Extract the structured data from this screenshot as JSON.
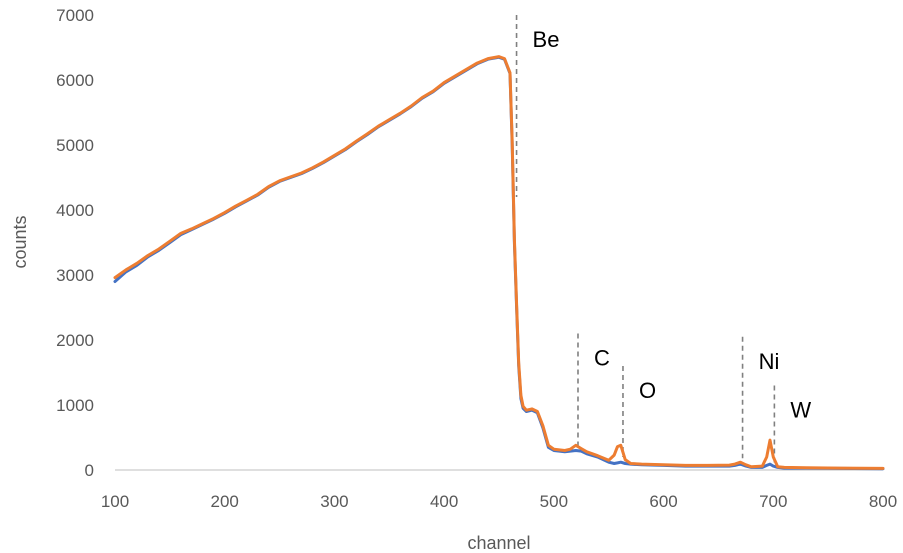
{
  "chart_data": {
    "type": "line",
    "title": "",
    "xlabel": "channel",
    "ylabel": "counts",
    "xlim": [
      100,
      800
    ],
    "ylim": [
      0,
      7000
    ],
    "xticks": [
      100,
      200,
      300,
      400,
      500,
      600,
      700,
      800
    ],
    "yticks": [
      0,
      1000,
      2000,
      3000,
      4000,
      5000,
      6000,
      7000
    ],
    "grid": false,
    "legend": "none",
    "series": [
      {
        "color": "#4472C4",
        "x": [
          100,
          110,
          120,
          130,
          140,
          150,
          160,
          170,
          180,
          190,
          200,
          210,
          220,
          230,
          240,
          250,
          260,
          270,
          280,
          290,
          300,
          310,
          320,
          330,
          340,
          350,
          360,
          370,
          380,
          390,
          400,
          410,
          420,
          430,
          440,
          450,
          455,
          460,
          462,
          464,
          466,
          468,
          470,
          472,
          475,
          480,
          485,
          490,
          495,
          500,
          510,
          515,
          520,
          525,
          530,
          540,
          550,
          555,
          558,
          561,
          565,
          570,
          580,
          600,
          620,
          640,
          660,
          665,
          670,
          675,
          680,
          690,
          694,
          697,
          700,
          704,
          710,
          730,
          760,
          800
        ],
        "y": [
          2900,
          3050,
          3150,
          3280,
          3380,
          3500,
          3620,
          3700,
          3780,
          3860,
          3950,
          4050,
          4140,
          4230,
          4350,
          4440,
          4500,
          4560,
          4640,
          4730,
          4830,
          4930,
          5050,
          5160,
          5280,
          5380,
          5480,
          5590,
          5720,
          5820,
          5950,
          6050,
          6150,
          6250,
          6320,
          6350,
          6320,
          6100,
          5000,
          3500,
          2500,
          1600,
          1100,
          950,
          900,
          920,
          880,
          650,
          350,
          300,
          280,
          290,
          300,
          290,
          250,
          200,
          120,
          100,
          110,
          120,
          100,
          90,
          80,
          70,
          60,
          60,
          60,
          70,
          90,
          60,
          40,
          40,
          70,
          90,
          60,
          40,
          30,
          30,
          25,
          20
        ]
      },
      {
        "color": "#ED7D31",
        "x": [
          100,
          110,
          120,
          130,
          140,
          150,
          160,
          170,
          180,
          190,
          200,
          210,
          220,
          230,
          240,
          250,
          260,
          270,
          280,
          290,
          300,
          310,
          320,
          330,
          340,
          350,
          360,
          370,
          380,
          390,
          400,
          410,
          420,
          430,
          440,
          450,
          455,
          460,
          462,
          464,
          466,
          468,
          470,
          472,
          475,
          480,
          485,
          490,
          495,
          500,
          510,
          515,
          520,
          525,
          530,
          540,
          550,
          555,
          558,
          561,
          565,
          570,
          580,
          600,
          620,
          640,
          660,
          665,
          670,
          675,
          680,
          690,
          694,
          697,
          700,
          704,
          710,
          730,
          760,
          800
        ],
        "y": [
          2960,
          3080,
          3180,
          3300,
          3400,
          3520,
          3640,
          3710,
          3790,
          3870,
          3960,
          4060,
          4150,
          4240,
          4360,
          4450,
          4510,
          4570,
          4650,
          4740,
          4840,
          4940,
          5060,
          5170,
          5290,
          5390,
          5490,
          5600,
          5730,
          5830,
          5960,
          6060,
          6160,
          6260,
          6330,
          6360,
          6330,
          6110,
          5050,
          3550,
          2550,
          1650,
          1150,
          980,
          920,
          940,
          900,
          680,
          380,
          320,
          300,
          320,
          380,
          330,
          280,
          220,
          150,
          230,
          360,
          380,
          160,
          100,
          90,
          80,
          70,
          70,
          75,
          90,
          120,
          80,
          50,
          60,
          200,
          460,
          200,
          50,
          40,
          35,
          30,
          25
        ]
      }
    ],
    "annotations": [
      {
        "label": "Be",
        "x": 466,
        "y_top": 7000,
        "y_bottom": 4200
      },
      {
        "label": "C",
        "x": 522,
        "y_top": 2100,
        "y_bottom": 280
      },
      {
        "label": "O",
        "x": 563,
        "y_top": 1600,
        "y_bottom": 200
      },
      {
        "label": "Ni",
        "x": 672,
        "y_top": 2050,
        "y_bottom": 180
      },
      {
        "label": "W",
        "x": 701,
        "y_top": 1300,
        "y_bottom": 100
      }
    ]
  }
}
